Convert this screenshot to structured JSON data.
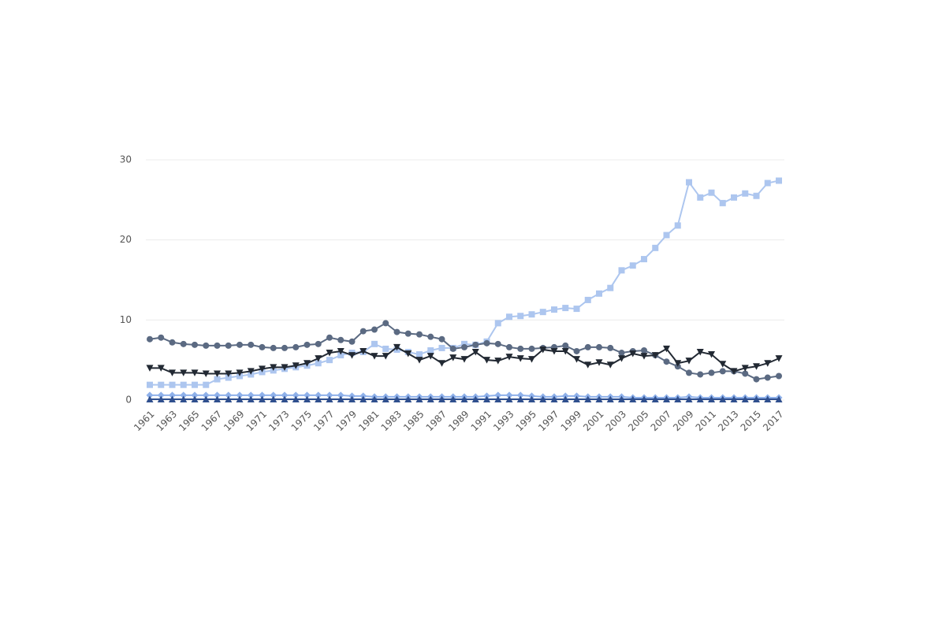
{
  "chart_data": {
    "type": "line",
    "x": [
      1961,
      1962,
      1963,
      1964,
      1965,
      1966,
      1967,
      1968,
      1969,
      1970,
      1971,
      1972,
      1973,
      1974,
      1975,
      1976,
      1977,
      1978,
      1979,
      1980,
      1981,
      1982,
      1983,
      1984,
      1985,
      1986,
      1987,
      1988,
      1989,
      1990,
      1991,
      1992,
      1993,
      1994,
      1995,
      1996,
      1997,
      1998,
      1999,
      2000,
      2001,
      2002,
      2003,
      2004,
      2005,
      2006,
      2007,
      2008,
      2009,
      2010,
      2011,
      2012,
      2013,
      2014,
      2015,
      2016,
      2017
    ],
    "xlim": [
      1961,
      2017
    ],
    "xticks": [
      1961,
      1963,
      1965,
      1967,
      1969,
      1971,
      1973,
      1975,
      1977,
      1979,
      1981,
      1983,
      1985,
      1987,
      1989,
      1991,
      1993,
      1995,
      1997,
      1999,
      2001,
      2003,
      2005,
      2007,
      2009,
      2011,
      2013,
      2015,
      2017
    ],
    "ylim": [
      0,
      30
    ],
    "yticks": [
      0,
      10,
      20,
      30
    ],
    "grid": true,
    "series": [
      {
        "color": "#adc6ef",
        "marker": "square",
        "values": [
          1.9,
          1.9,
          1.9,
          1.9,
          1.9,
          1.9,
          2.6,
          2.8,
          3.0,
          3.2,
          3.5,
          3.7,
          3.9,
          4.1,
          4.3,
          4.6,
          5.0,
          5.6,
          5.9,
          6.0,
          7.0,
          6.4,
          6.3,
          6.0,
          5.7,
          6.2,
          6.5,
          6.5,
          7.0,
          6.9,
          7.3,
          9.6,
          10.4,
          10.5,
          10.7,
          11.0,
          11.3,
          11.5,
          11.4,
          12.5,
          13.3,
          14.0,
          16.2,
          16.8,
          17.6,
          19.0,
          20.6,
          21.8,
          27.2,
          25.3,
          25.9,
          24.6,
          25.3,
          25.8,
          25.5,
          27.1,
          27.4
        ]
      },
      {
        "color": "#5b6a82",
        "marker": "circle",
        "values": [
          7.6,
          7.8,
          7.2,
          7.0,
          6.9,
          6.8,
          6.8,
          6.8,
          6.9,
          6.9,
          6.6,
          6.5,
          6.5,
          6.6,
          6.9,
          7.0,
          7.8,
          7.5,
          7.3,
          8.6,
          8.8,
          9.6,
          8.5,
          8.3,
          8.2,
          7.9,
          7.6,
          6.4,
          6.6,
          6.9,
          7.1,
          7.0,
          6.6,
          6.4,
          6.4,
          6.5,
          6.6,
          6.8,
          6.1,
          6.6,
          6.6,
          6.5,
          5.9,
          6.1,
          6.2,
          5.6,
          4.8,
          4.2,
          3.4,
          3.2,
          3.4,
          3.6,
          3.6,
          3.3,
          2.6,
          2.8,
          3.0
        ]
      },
      {
        "color": "#222933",
        "marker": "down",
        "values": [
          4.0,
          4.0,
          3.4,
          3.4,
          3.4,
          3.3,
          3.3,
          3.3,
          3.4,
          3.6,
          3.9,
          4.1,
          4.1,
          4.3,
          4.6,
          5.2,
          5.9,
          6.1,
          5.6,
          6.1,
          5.5,
          5.5,
          6.6,
          5.8,
          5.0,
          5.5,
          4.6,
          5.3,
          5.1,
          6.0,
          5.0,
          4.9,
          5.4,
          5.2,
          5.1,
          6.3,
          6.1,
          6.1,
          5.1,
          4.4,
          4.7,
          4.4,
          5.2,
          5.8,
          5.5,
          5.6,
          6.4,
          4.6,
          4.9,
          6.0,
          5.7,
          4.5,
          3.6,
          4.0,
          4.2,
          4.6,
          5.2
        ]
      },
      {
        "color": "#8fb1ea",
        "marker": "diamond",
        "values": [
          0.6,
          0.6,
          0.6,
          0.6,
          0.6,
          0.6,
          0.6,
          0.6,
          0.6,
          0.6,
          0.6,
          0.6,
          0.6,
          0.6,
          0.6,
          0.6,
          0.6,
          0.6,
          0.5,
          0.5,
          0.4,
          0.4,
          0.4,
          0.4,
          0.4,
          0.4,
          0.4,
          0.4,
          0.4,
          0.4,
          0.5,
          0.6,
          0.6,
          0.6,
          0.5,
          0.4,
          0.4,
          0.5,
          0.5,
          0.4,
          0.4,
          0.4,
          0.4,
          0.3,
          0.3,
          0.3,
          0.3,
          0.3,
          0.4,
          0.3,
          0.3,
          0.3,
          0.3,
          0.3,
          0.3,
          0.3,
          0.3
        ]
      },
      {
        "color": "#2f4f8e",
        "marker": "up",
        "values": [
          0.1,
          0.1,
          0.1,
          0.1,
          0.1,
          0.1,
          0.1,
          0.1,
          0.1,
          0.1,
          0.1,
          0.1,
          0.1,
          0.1,
          0.1,
          0.1,
          0.1,
          0.1,
          0.1,
          0.1,
          0.1,
          0.1,
          0.1,
          0.1,
          0.1,
          0.1,
          0.1,
          0.1,
          0.1,
          0.1,
          0.1,
          0.1,
          0.1,
          0.1,
          0.1,
          0.1,
          0.1,
          0.1,
          0.1,
          0.1,
          0.1,
          0.1,
          0.1,
          0.1,
          0.1,
          0.1,
          0.1,
          0.1,
          0.1,
          0.1,
          0.1,
          0.1,
          0.1,
          0.1,
          0.1,
          0.1,
          0.1
        ]
      }
    ]
  }
}
